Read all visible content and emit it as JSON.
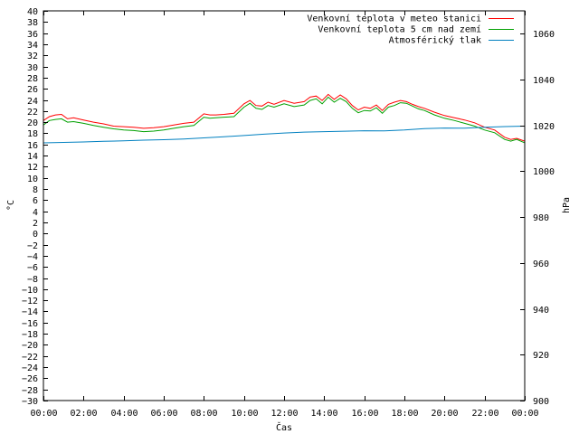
{
  "chart_data": {
    "type": "line",
    "xlabel": "Čas",
    "ylabel_left": "°C",
    "ylabel_right": "hPa",
    "x_ticks": [
      "00:00",
      "02:00",
      "04:00",
      "06:00",
      "08:00",
      "10:00",
      "12:00",
      "14:00",
      "16:00",
      "18:00",
      "20:00",
      "22:00",
      "00:00"
    ],
    "xlim_hours": [
      0,
      24
    ],
    "ylim_left": [
      -30,
      40
    ],
    "ylim_right": [
      900,
      1070
    ],
    "y_left_step": 2,
    "y_right_ticks": [
      900,
      920,
      940,
      960,
      980,
      1000,
      1020,
      1040,
      1060
    ],
    "legend_position": "top-right",
    "series": [
      {
        "name": "Venkovní teplota v meteo stanici",
        "color": "#ff0000",
        "axis": "left",
        "x": [
          0,
          0.3,
          0.6,
          0.9,
          1.2,
          1.5,
          2,
          2.5,
          3,
          3.5,
          4,
          4.5,
          5,
          5.5,
          6,
          6.5,
          7,
          7.5,
          8,
          8.3,
          8.6,
          9,
          9.5,
          10,
          10.3,
          10.6,
          10.9,
          11.2,
          11.5,
          12,
          12.5,
          13,
          13.3,
          13.6,
          13.9,
          14.2,
          14.5,
          14.8,
          15.1,
          15.4,
          15.7,
          16,
          16.3,
          16.6,
          16.9,
          17.2,
          17.5,
          17.8,
          18.1,
          18.4,
          18.7,
          19,
          19.5,
          20,
          20.5,
          21,
          21.5,
          22,
          22.5,
          23,
          23.3,
          23.6,
          24
        ],
        "y": [
          20.3,
          21,
          21.3,
          21.4,
          20.6,
          20.8,
          20.4,
          20,
          19.7,
          19.3,
          19.2,
          19.1,
          18.9,
          19,
          19.2,
          19.5,
          19.8,
          20,
          21.5,
          21.3,
          21.3,
          21.4,
          21.6,
          23.3,
          23.9,
          23,
          22.9,
          23.6,
          23.2,
          23.9,
          23.4,
          23.7,
          24.5,
          24.7,
          23.9,
          25,
          24.1,
          24.9,
          24.2,
          23,
          22.2,
          22.7,
          22.5,
          23.1,
          22.1,
          23.2,
          23.6,
          23.9,
          23.7,
          23.2,
          22.8,
          22.5,
          21.8,
          21.2,
          20.8,
          20.4,
          19.9,
          19.1,
          18.6,
          17.3,
          16.9,
          17.1,
          16.6
        ]
      },
      {
        "name": "Venkovní teplota 5 cm nad zemí",
        "color": "#00a000",
        "axis": "left",
        "x": [
          0,
          0.3,
          0.6,
          0.9,
          1.2,
          1.5,
          2,
          2.5,
          3,
          3.5,
          4,
          4.5,
          5,
          5.5,
          6,
          6.5,
          7,
          7.5,
          8,
          8.3,
          8.6,
          9,
          9.5,
          10,
          10.3,
          10.6,
          10.9,
          11.2,
          11.5,
          12,
          12.5,
          13,
          13.3,
          13.6,
          13.9,
          14.2,
          14.5,
          14.8,
          15.1,
          15.4,
          15.7,
          16,
          16.3,
          16.6,
          16.9,
          17.2,
          17.5,
          17.8,
          18.1,
          18.4,
          18.7,
          19,
          19.5,
          20,
          20.5,
          21,
          21.5,
          22,
          22.5,
          23,
          23.3,
          23.6,
          24
        ],
        "y": [
          19.5,
          20.3,
          20.5,
          20.6,
          20,
          20.1,
          19.8,
          19.4,
          19.1,
          18.8,
          18.6,
          18.5,
          18.3,
          18.4,
          18.6,
          18.9,
          19.2,
          19.4,
          20.9,
          20.7,
          20.8,
          20.9,
          21,
          22.7,
          23.4,
          22.5,
          22.3,
          23,
          22.7,
          23.3,
          22.8,
          23.1,
          23.9,
          24.2,
          23.3,
          24.5,
          23.6,
          24.3,
          23.7,
          22.5,
          21.7,
          22.1,
          22,
          22.6,
          21.6,
          22.7,
          23,
          23.5,
          23.4,
          22.9,
          22.4,
          22.1,
          21.3,
          20.7,
          20.3,
          19.8,
          19.3,
          18.6,
          18.1,
          16.9,
          16.6,
          16.9,
          16.3
        ]
      },
      {
        "name": "Atmosférický tlak",
        "color": "#0080c0",
        "axis": "right",
        "x": [
          0,
          1,
          2,
          3,
          4,
          5,
          6,
          7,
          8,
          9,
          10,
          11,
          12,
          13,
          14,
          15,
          16,
          17,
          18,
          19,
          20,
          21,
          22,
          23,
          24
        ],
        "y": [
          1012.4,
          1012.6,
          1012.8,
          1013.1,
          1013.3,
          1013.6,
          1013.8,
          1014.1,
          1014.6,
          1015.1,
          1015.6,
          1016.2,
          1016.7,
          1017.1,
          1017.3,
          1017.5,
          1017.7,
          1017.6,
          1018,
          1018.6,
          1018.9,
          1018.8,
          1019.2,
          1019.5,
          1019.7
        ]
      }
    ]
  }
}
